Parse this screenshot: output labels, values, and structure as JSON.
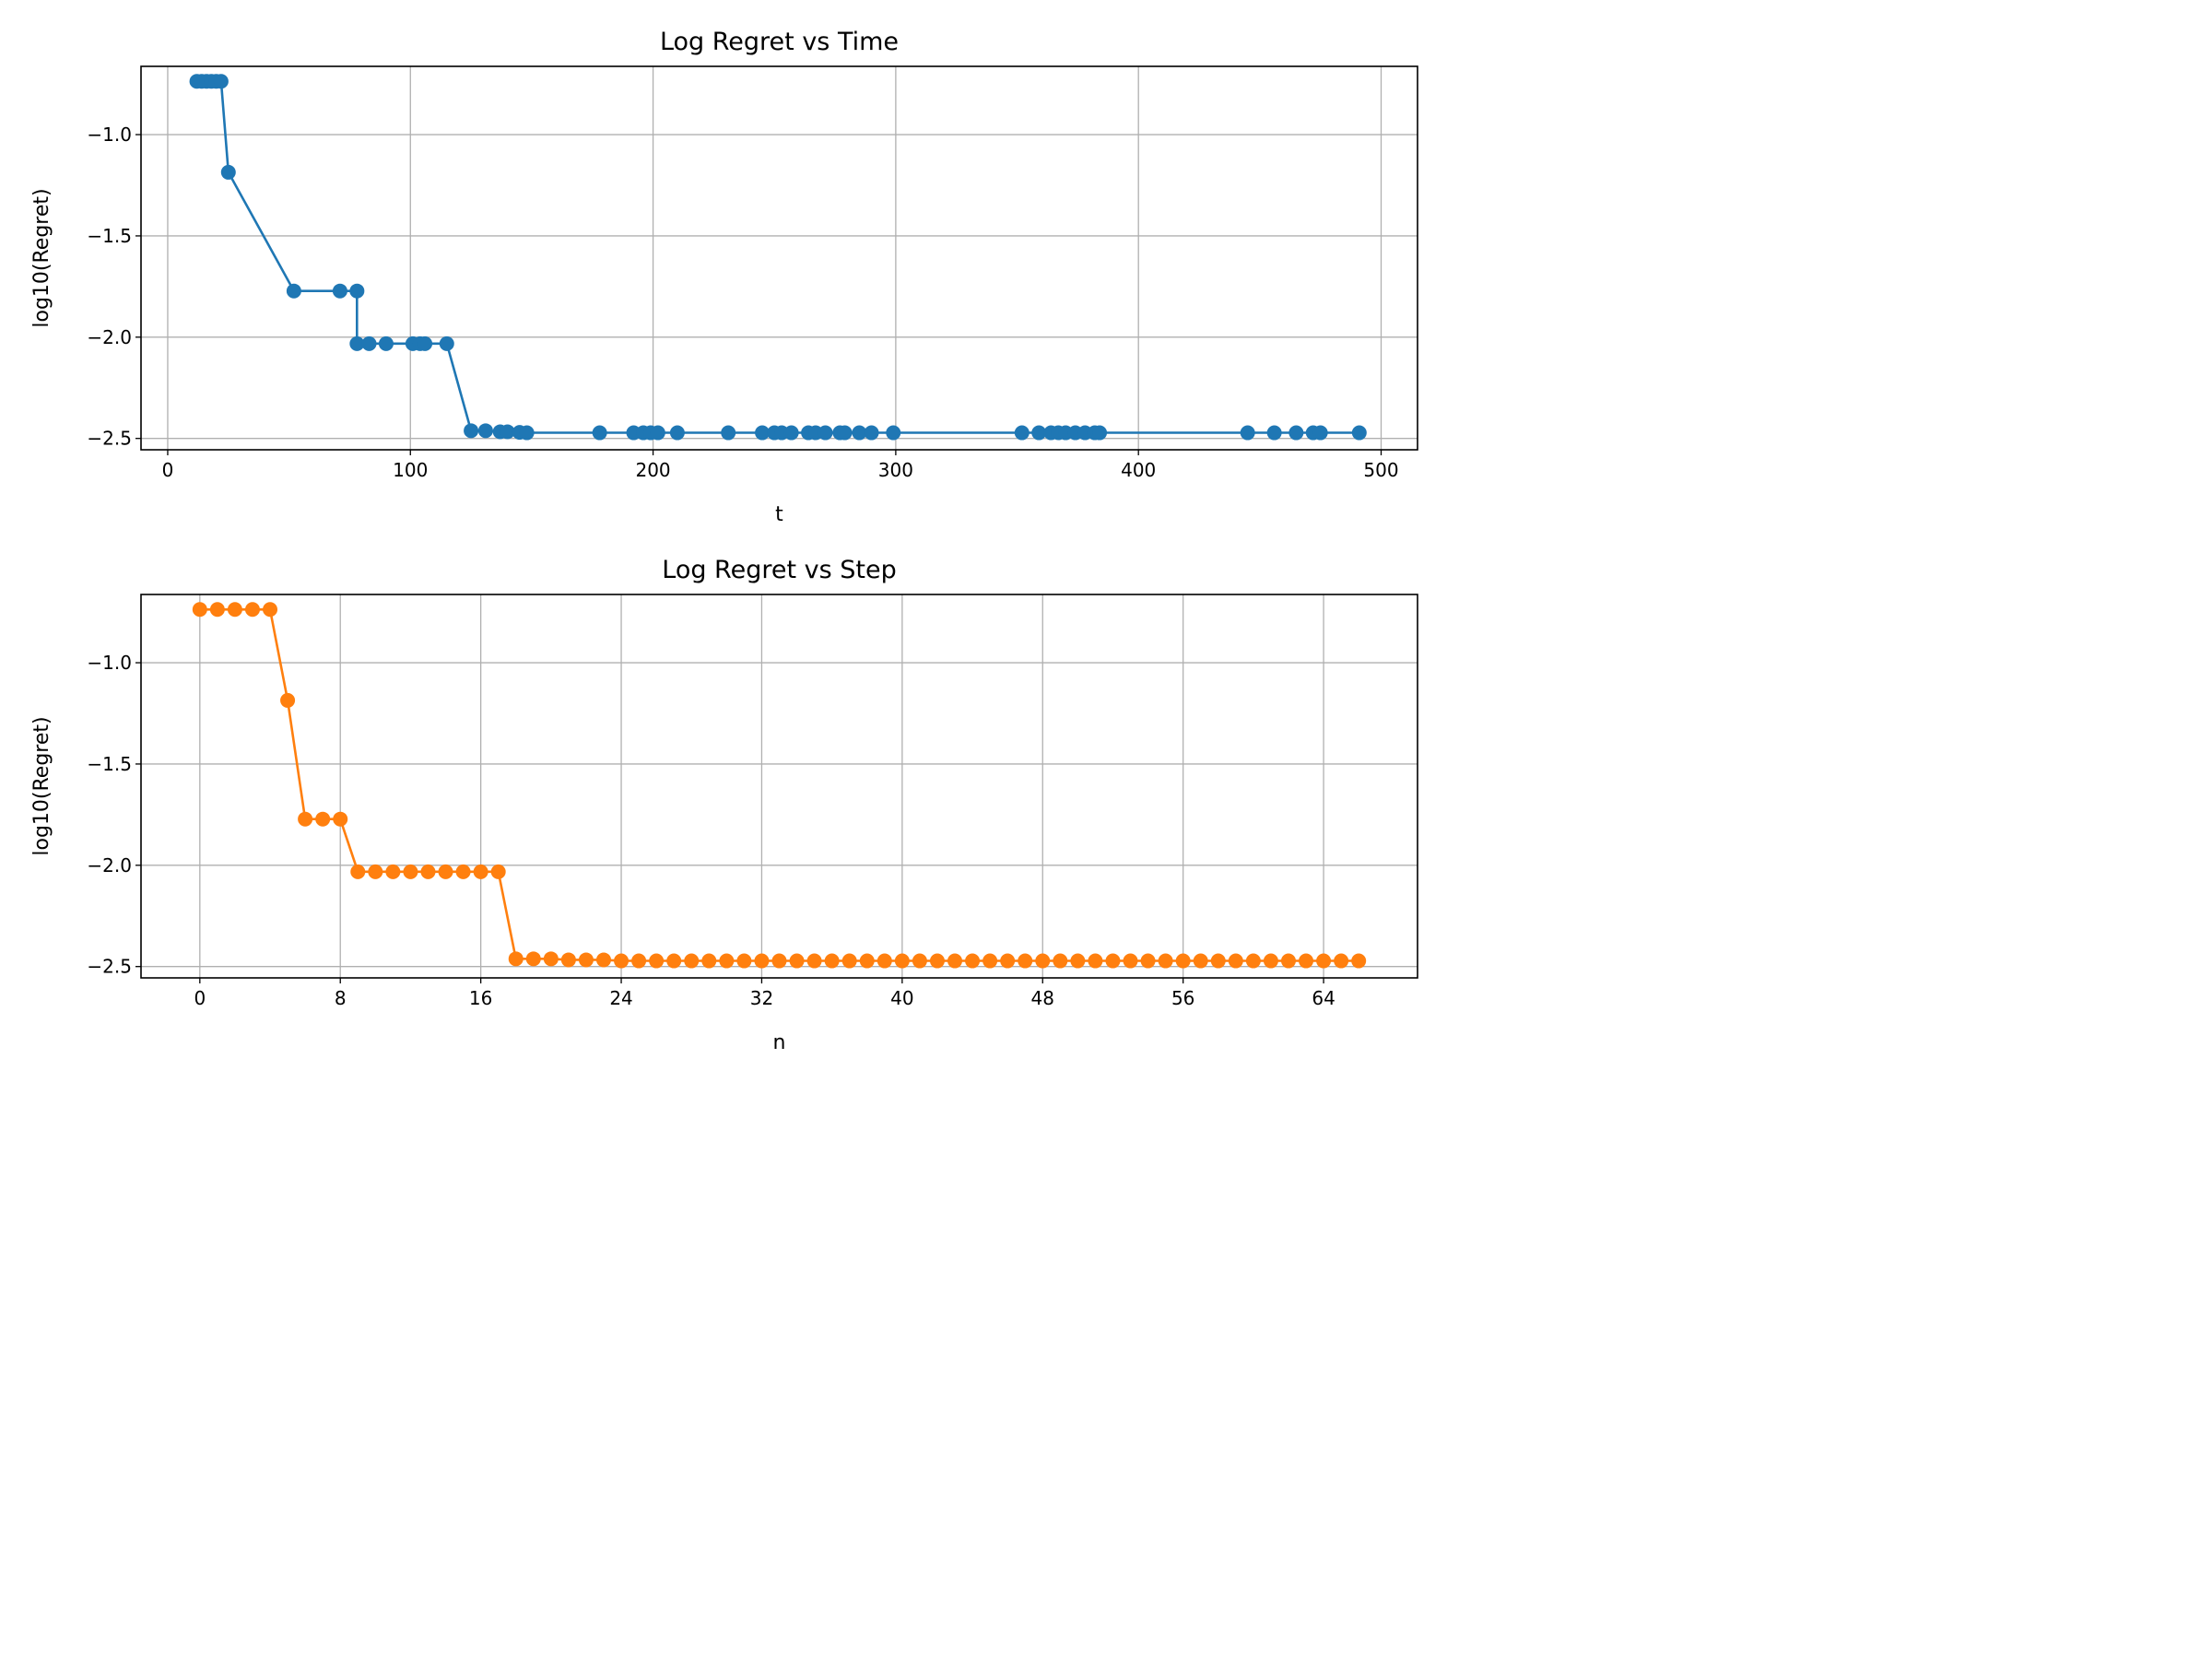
{
  "chart_data": [
    {
      "type": "line",
      "title": "Log Regret vs Time",
      "xlabel": "t",
      "ylabel": "log10(Regret)",
      "xlim": [
        -11,
        515
      ],
      "ylim": [
        -2.556,
        -0.663
      ],
      "xticks": [
        0,
        100,
        200,
        300,
        400,
        500
      ],
      "xtick_labels": [
        "0",
        "100",
        "200",
        "300",
        "400",
        "500"
      ],
      "yticks": [
        -1.0,
        -1.5,
        -2.0,
        -2.5
      ],
      "ytick_labels": [
        "−1.0",
        "−1.5",
        "−2.0",
        "−2.5"
      ],
      "grid": true,
      "color": "#1f77b4",
      "marker": "o",
      "series": [
        {
          "x": [
            12,
            14,
            16,
            18,
            20,
            22,
            25,
            52,
            71,
            78,
            78,
            83,
            90,
            101,
            104,
            106,
            115,
            125,
            131,
            137,
            140,
            145,
            148,
            178,
            192,
            196,
            199,
            202,
            210,
            231,
            245,
            250,
            253,
            257,
            264,
            267,
            271,
            277,
            279,
            285,
            290,
            299,
            352,
            359,
            364,
            367,
            370,
            374,
            378,
            382,
            384,
            445,
            456,
            465,
            472,
            475,
            491
          ],
          "y": [
            -0.737,
            -0.737,
            -0.737,
            -0.737,
            -0.737,
            -0.737,
            -1.186,
            -1.772,
            -1.772,
            -1.772,
            -2.032,
            -2.032,
            -2.032,
            -2.032,
            -2.032,
            -2.032,
            -2.032,
            -2.462,
            -2.462,
            -2.467,
            -2.467,
            -2.47,
            -2.472,
            -2.472,
            -2.472,
            -2.472,
            -2.472,
            -2.472,
            -2.472,
            -2.472,
            -2.472,
            -2.472,
            -2.472,
            -2.472,
            -2.472,
            -2.472,
            -2.472,
            -2.472,
            -2.472,
            -2.472,
            -2.472,
            -2.472,
            -2.472,
            -2.472,
            -2.472,
            -2.472,
            -2.472,
            -2.472,
            -2.472,
            -2.472,
            -2.472,
            -2.472,
            -2.472,
            -2.472,
            -2.472,
            -2.472,
            -2.472
          ]
        }
      ]
    },
    {
      "type": "line",
      "title": "Log Regret vs Step",
      "xlabel": "n",
      "ylabel": "log10(Regret)",
      "xlim": [
        -3.35,
        69.35
      ],
      "ylim": [
        -2.556,
        -0.663
      ],
      "xticks": [
        0,
        8,
        16,
        24,
        32,
        40,
        48,
        56,
        64
      ],
      "xtick_labels": [
        "0",
        "8",
        "16",
        "24",
        "32",
        "40",
        "48",
        "56",
        "64"
      ],
      "yticks": [
        -1.0,
        -1.5,
        -2.0,
        -2.5
      ],
      "ytick_labels": [
        "−1.0",
        "−1.5",
        "−2.0",
        "−2.5"
      ],
      "grid": true,
      "color": "#ff7f0e",
      "marker": "o",
      "series": [
        {
          "x": [
            0,
            1,
            2,
            3,
            4,
            5,
            6,
            7,
            8,
            9,
            10,
            11,
            12,
            13,
            14,
            15,
            16,
            17,
            18,
            19,
            20,
            21,
            22,
            23,
            24,
            25,
            26,
            27,
            28,
            29,
            30,
            31,
            32,
            33,
            34,
            35,
            36,
            37,
            38,
            39,
            40,
            41,
            42,
            43,
            44,
            45,
            46,
            47,
            48,
            49,
            50,
            51,
            52,
            53,
            54,
            55,
            56,
            57,
            58,
            59,
            60,
            61,
            62,
            63,
            64,
            65,
            66
          ],
          "y": [
            -0.737,
            -0.737,
            -0.737,
            -0.737,
            -0.737,
            -1.186,
            -1.772,
            -1.772,
            -1.772,
            -2.032,
            -2.032,
            -2.032,
            -2.032,
            -2.032,
            -2.032,
            -2.032,
            -2.032,
            -2.032,
            -2.462,
            -2.462,
            -2.462,
            -2.467,
            -2.467,
            -2.467,
            -2.472,
            -2.472,
            -2.472,
            -2.472,
            -2.472,
            -2.472,
            -2.472,
            -2.472,
            -2.472,
            -2.472,
            -2.472,
            -2.472,
            -2.472,
            -2.472,
            -2.472,
            -2.472,
            -2.472,
            -2.472,
            -2.472,
            -2.472,
            -2.472,
            -2.472,
            -2.472,
            -2.472,
            -2.472,
            -2.472,
            -2.472,
            -2.472,
            -2.472,
            -2.472,
            -2.472,
            -2.472,
            -2.472,
            -2.472,
            -2.472,
            -2.472,
            -2.472,
            -2.472,
            -2.472,
            -2.472,
            -2.472,
            -2.472,
            -2.472
          ]
        }
      ]
    }
  ]
}
